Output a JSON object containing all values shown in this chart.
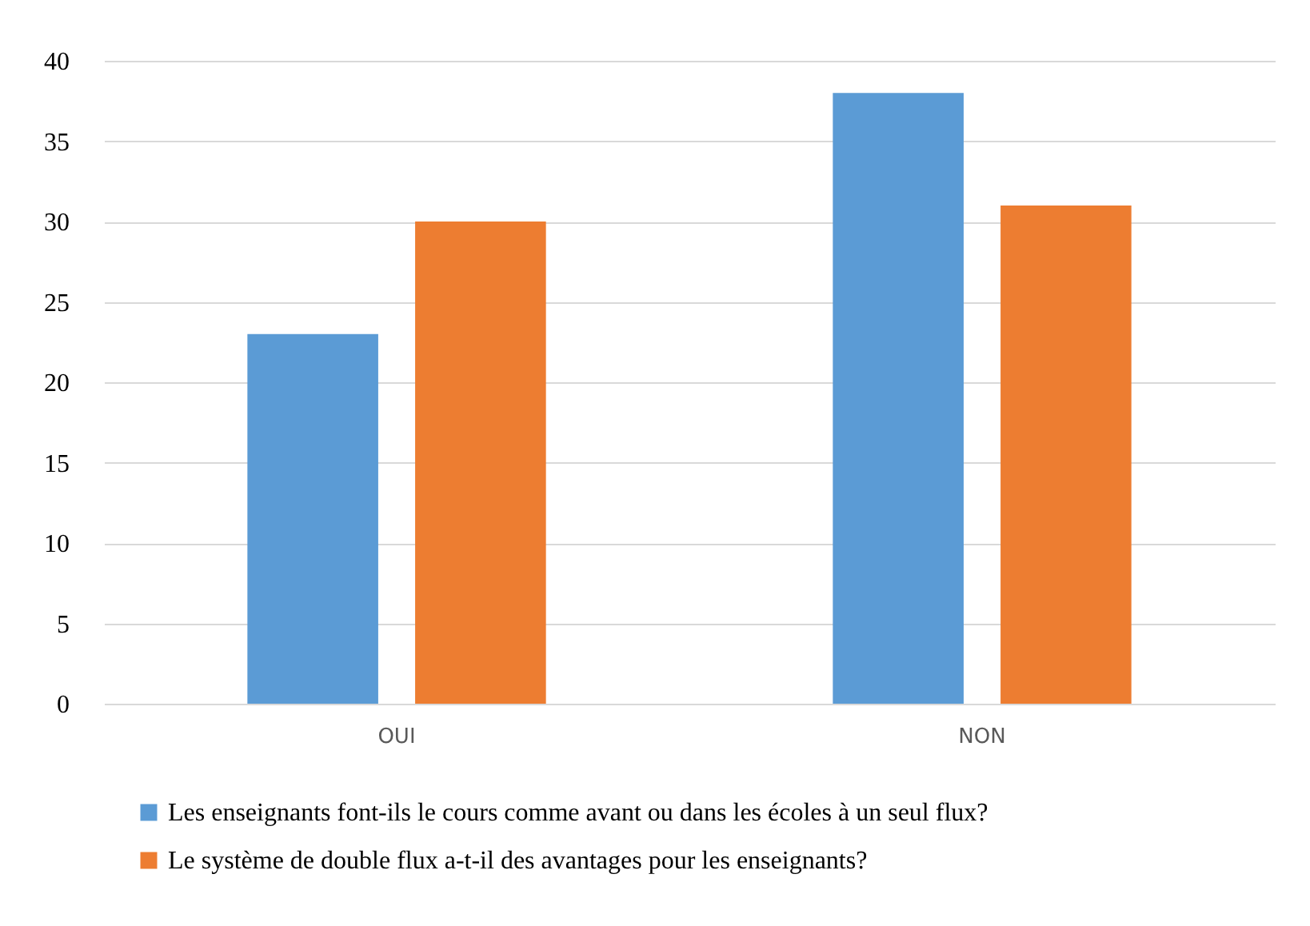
{
  "chart_data": {
    "type": "bar",
    "categories": [
      "OUI",
      "NON"
    ],
    "series": [
      {
        "name": "Les enseignants font-ils le cours comme avant ou dans les écoles à un seul flux?",
        "color": "#5b9bd5",
        "values": [
          23,
          38
        ]
      },
      {
        "name": "Le système de double flux a-t-il des avantages pour les enseignants?",
        "color": "#ed7d31",
        "values": [
          30,
          31
        ]
      }
    ],
    "ylim": [
      0,
      40
    ],
    "yticks": [
      0,
      5,
      10,
      15,
      20,
      25,
      30,
      35,
      40
    ],
    "grid": "y",
    "legend": "bottom"
  }
}
